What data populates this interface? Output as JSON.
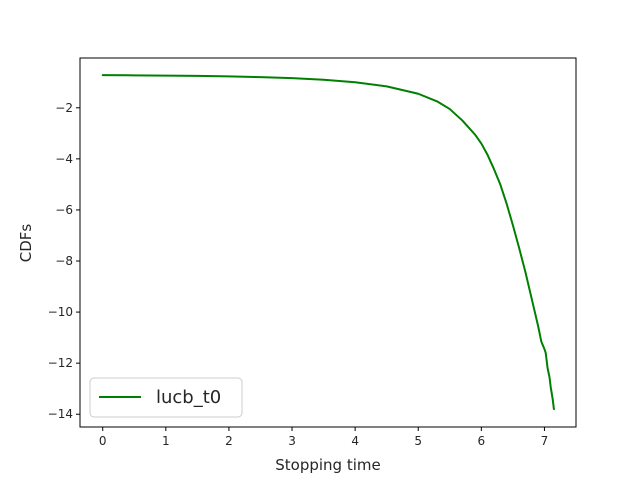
{
  "chart_data": {
    "type": "line",
    "title": "",
    "xlabel": "Stopping time",
    "ylabel": "CDFs",
    "xlim": [
      -0.36,
      7.5
    ],
    "ylim": [
      -14.5,
      -0.05
    ],
    "xticks": [
      0,
      1,
      2,
      3,
      4,
      5,
      6,
      7
    ],
    "xtick_labels": [
      "0",
      "1",
      "2",
      "3",
      "4",
      "5",
      "6",
      "7"
    ],
    "yticks": [
      -2,
      -4,
      -6,
      -8,
      -10,
      -12,
      -14
    ],
    "ytick_labels": [
      "−2",
      "−4",
      "−6",
      "−8",
      "−10",
      "−12",
      "−14"
    ],
    "grid": false,
    "legend": {
      "placement": "lower-left"
    },
    "series": [
      {
        "name": "lucb_t0",
        "color": "#008000",
        "x": [
          0,
          0.5,
          1.0,
          1.5,
          2.0,
          2.5,
          3.0,
          3.5,
          4.0,
          4.5,
          5.0,
          5.3,
          5.5,
          5.7,
          5.9,
          6.0,
          6.1,
          6.2,
          6.3,
          6.4,
          6.5,
          6.6,
          6.7,
          6.8,
          6.9,
          6.95,
          7.0,
          7.02,
          7.05,
          7.08,
          7.1,
          7.13,
          7.15
        ],
        "y": [
          -0.72,
          -0.73,
          -0.74,
          -0.75,
          -0.77,
          -0.8,
          -0.84,
          -0.9,
          -1.0,
          -1.16,
          -1.45,
          -1.75,
          -2.05,
          -2.5,
          -3.05,
          -3.4,
          -3.85,
          -4.4,
          -5.0,
          -5.75,
          -6.6,
          -7.5,
          -8.45,
          -9.5,
          -10.55,
          -11.15,
          -11.45,
          -11.6,
          -12.2,
          -12.55,
          -12.95,
          -13.4,
          -13.8
        ]
      }
    ]
  }
}
